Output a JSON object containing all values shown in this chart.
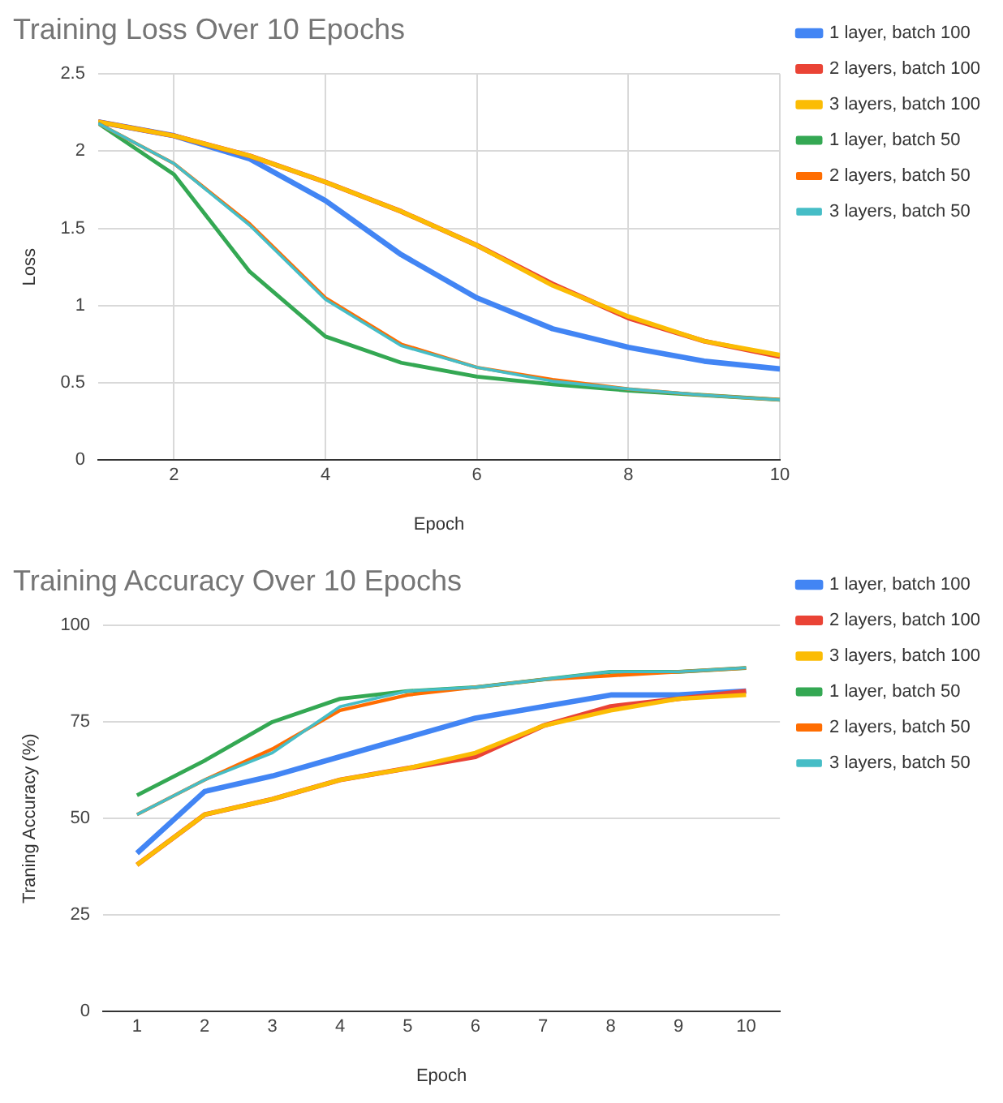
{
  "chart_data": [
    {
      "type": "line",
      "title": "Training Loss Over 10 Epochs",
      "xlabel": "Epoch",
      "ylabel": "Loss",
      "x": [
        1,
        2,
        3,
        4,
        5,
        6,
        7,
        8,
        9,
        10
      ],
      "xlim": [
        1,
        10
      ],
      "xticks": [
        2,
        4,
        6,
        8,
        10
      ],
      "ylim": [
        0,
        2.5
      ],
      "yticks": [
        0,
        0.5,
        1,
        1.5,
        2,
        2.5
      ],
      "grid": true,
      "legend": "right",
      "series": [
        {
          "name": "1 layer, batch 100",
          "color": "#4285f4",
          "values": [
            2.19,
            2.1,
            1.95,
            1.68,
            1.33,
            1.05,
            0.85,
            0.73,
            0.64,
            0.59
          ]
        },
        {
          "name": "2 layers, batch 100",
          "color": "#ea4335",
          "values": [
            2.19,
            2.1,
            1.97,
            1.8,
            1.61,
            1.39,
            1.14,
            0.92,
            0.77,
            0.67
          ]
        },
        {
          "name": "3 layers, batch 100",
          "color": "#fbbc04",
          "values": [
            2.19,
            2.1,
            1.97,
            1.8,
            1.61,
            1.39,
            1.13,
            0.93,
            0.77,
            0.68
          ]
        },
        {
          "name": "1 layer, batch 50",
          "color": "#34a853",
          "values": [
            2.18,
            1.85,
            1.22,
            0.8,
            0.63,
            0.54,
            0.49,
            0.45,
            0.42,
            0.39
          ]
        },
        {
          "name": "2 layers, batch 50",
          "color": "#ff6d01",
          "values": [
            2.18,
            1.92,
            1.53,
            1.05,
            0.75,
            0.6,
            0.52,
            0.46,
            0.42,
            0.39
          ]
        },
        {
          "name": "3 layers, batch 50",
          "color": "#46bdc6",
          "values": [
            2.18,
            1.92,
            1.52,
            1.04,
            0.74,
            0.6,
            0.51,
            0.46,
            0.42,
            0.39
          ]
        }
      ]
    },
    {
      "type": "line",
      "title": "Training Accuracy Over 10 Epochs",
      "xlabel": "Epoch",
      "ylabel": "Traning Accuracy (%)",
      "categories": [
        "1",
        "2",
        "3",
        "4",
        "5",
        "6",
        "7",
        "8",
        "9",
        "10"
      ],
      "ylim": [
        0,
        100
      ],
      "yticks": [
        0,
        25,
        50,
        75,
        100
      ],
      "grid": "y",
      "legend": "right",
      "series": [
        {
          "name": "1 layer, batch 100",
          "color": "#4285f4",
          "values": [
            41,
            57,
            61,
            66,
            71,
            76,
            79,
            82,
            82,
            83
          ]
        },
        {
          "name": "2 layers, batch 100",
          "color": "#ea4335",
          "values": [
            38,
            51,
            55,
            60,
            63,
            66,
            74,
            79,
            81,
            83
          ]
        },
        {
          "name": "3 layers, batch 100",
          "color": "#fbbc04",
          "values": [
            38,
            51,
            55,
            60,
            63,
            67,
            74,
            78,
            81,
            82
          ]
        },
        {
          "name": "1 layer, batch 50",
          "color": "#34a853",
          "values": [
            56,
            65,
            75,
            81,
            83,
            84,
            86,
            88,
            88,
            89
          ]
        },
        {
          "name": "2 layers, batch 50",
          "color": "#ff6d01",
          "values": [
            51,
            60,
            68,
            78,
            82,
            84,
            86,
            87,
            88,
            89
          ]
        },
        {
          "name": "3 layers, batch 50",
          "color": "#46bdc6",
          "values": [
            51,
            60,
            67,
            79,
            83,
            84,
            86,
            88,
            88,
            89
          ]
        }
      ]
    }
  ]
}
